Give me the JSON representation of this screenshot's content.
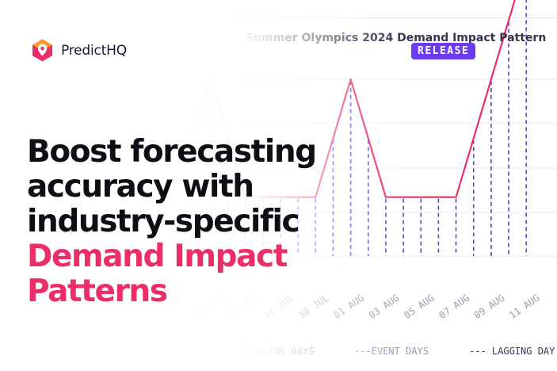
{
  "brand": {
    "name": "PredictHQ",
    "logo_colors": [
      "#f7a226",
      "#ec2e67"
    ]
  },
  "headline": {
    "lines": [
      "Boost forecasting",
      "accuracy with",
      "industry-specific"
    ],
    "accent_lines": [
      "Demand Impact",
      "Patterns"
    ]
  },
  "badge": {
    "label": "RELEASE",
    "color": "#6b3cf0"
  },
  "colors": {
    "accent": "#ec2e67",
    "dashed": "#5b3fd6",
    "text": "#0e0e14"
  },
  "chart_data": {
    "type": "line",
    "title": "Summer Olympics 2024 Demand Impact Pattern",
    "x": [
      "22 JUL",
      "24 JUL",
      "26 JUL",
      "28 JUL",
      "30 JUL",
      "01 AUG",
      "03 AUG",
      "05 AUG",
      "07 AUG",
      "09 AUG",
      "11 AUG"
    ],
    "series": [
      {
        "values": [
          1.0,
          3.0,
          1.0,
          1.0,
          1.0,
          3.0,
          1.0,
          1.0,
          1.0,
          3.0,
          5.0
        ]
      }
    ],
    "legend": [
      "LAGGING DAYS",
      "---EVENT DAYS",
      "--- LAGGING DAY"
    ],
    "legend_position": "bottom",
    "grid": true
  }
}
